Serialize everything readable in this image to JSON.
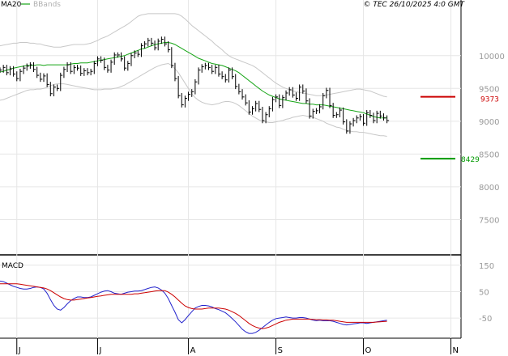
{
  "header": {
    "legend_ma": "MA20",
    "legend_bb": "BBands",
    "copyright": "© TEC 26/10/2025 4:0 GMT"
  },
  "colors": {
    "ma": "#16a516",
    "bands": "#c8c8c8",
    "price": "#000000",
    "resistance": "#cc0000",
    "support": "#009900",
    "macd_line": "#2222cc",
    "signal_line": "#cc0000",
    "grid": "#e6e6e6"
  },
  "markers": {
    "resistance": {
      "value": 9373,
      "label": "9373"
    },
    "support": {
      "value": 8429,
      "label": "8429"
    }
  },
  "macd_panel": {
    "title": "MACD"
  },
  "chart_data": [
    {
      "type": "line",
      "title": "",
      "ylim": [
        7000,
        10700
      ],
      "y_ticks": [
        7500,
        8000,
        8500,
        9000,
        9500,
        10000
      ],
      "grid": true,
      "x_tick_labels": [
        "J",
        "J",
        "A",
        "S",
        "O",
        "N"
      ],
      "x_tick_positions": [
        5,
        29,
        56,
        82,
        108,
        134
      ],
      "x_range": [
        0,
        137
      ],
      "series": [
        {
          "name": "MA20",
          "values": [
            9750,
            9760,
            9780,
            9790,
            9810,
            9820,
            9830,
            9840,
            9850,
            9850,
            9850,
            9860,
            9860,
            9850,
            9860,
            9860,
            9860,
            9860,
            9860,
            9860,
            9860,
            9870,
            9880,
            9880,
            9890,
            9890,
            9890,
            9900,
            9910,
            9920,
            9930,
            9940,
            9950,
            9960,
            9970,
            9980,
            9990,
            10000,
            10020,
            10040,
            10060,
            10080,
            10100,
            10110,
            10130,
            10150,
            10170,
            10180,
            10190,
            10200,
            10200,
            10190,
            10170,
            10140,
            10110,
            10080,
            10050,
            10020,
            9990,
            9960,
            9940,
            9920,
            9900,
            9880,
            9870,
            9860,
            9850,
            9830,
            9810,
            9790,
            9770,
            9740,
            9700,
            9660,
            9620,
            9580,
            9540,
            9500,
            9460,
            9430,
            9400,
            9380,
            9360,
            9340,
            9330,
            9320,
            9310,
            9300,
            9290,
            9280,
            9270,
            9270,
            9260,
            9260,
            9250,
            9250,
            9250,
            9240,
            9230,
            9220,
            9210,
            9200,
            9190,
            9180,
            9170,
            9160,
            9150,
            9140,
            9130,
            9110,
            9090,
            9070,
            9060,
            9050,
            9050,
            9050
          ]
        },
        {
          "name": "BBands upper",
          "values": [
            10150,
            10160,
            10170,
            10180,
            10190,
            10190,
            10200,
            10200,
            10200,
            10190,
            10190,
            10180,
            10180,
            10160,
            10150,
            10140,
            10130,
            10130,
            10130,
            10140,
            10150,
            10160,
            10170,
            10170,
            10170,
            10170,
            10180,
            10190,
            10210,
            10230,
            10260,
            10280,
            10300,
            10330,
            10360,
            10390,
            10420,
            10450,
            10480,
            10520,
            10560,
            10600,
            10620,
            10630,
            10640,
            10640,
            10640,
            10640,
            10640,
            10640,
            10640,
            10640,
            10640,
            10630,
            10600,
            10560,
            10510,
            10460,
            10420,
            10380,
            10340,
            10300,
            10260,
            10220,
            10170,
            10130,
            10090,
            10040,
            10000,
            9970,
            9950,
            9930,
            9910,
            9890,
            9870,
            9850,
            9820,
            9780,
            9740,
            9700,
            9660,
            9620,
            9580,
            9550,
            9520,
            9500,
            9480,
            9460,
            9450,
            9440,
            9430,
            9420,
            9410,
            9400,
            9390,
            9390,
            9390,
            9400,
            9410,
            9420,
            9430,
            9440,
            9450,
            9460,
            9470,
            9480,
            9490,
            9490,
            9480,
            9470,
            9460,
            9440,
            9420,
            9400,
            9380,
            9370
          ]
        },
        {
          "name": "BBands lower",
          "values": [
            9320,
            9330,
            9350,
            9370,
            9390,
            9410,
            9430,
            9450,
            9470,
            9480,
            9480,
            9490,
            9490,
            9500,
            9520,
            9540,
            9560,
            9570,
            9570,
            9570,
            9560,
            9550,
            9540,
            9530,
            9520,
            9510,
            9500,
            9490,
            9480,
            9480,
            9480,
            9490,
            9490,
            9490,
            9500,
            9510,
            9530,
            9550,
            9580,
            9610,
            9640,
            9670,
            9700,
            9730,
            9760,
            9790,
            9820,
            9840,
            9860,
            9870,
            9880,
            9850,
            9800,
            9740,
            9660,
            9580,
            9500,
            9420,
            9360,
            9320,
            9290,
            9270,
            9260,
            9250,
            9260,
            9270,
            9290,
            9300,
            9300,
            9290,
            9270,
            9240,
            9200,
            9160,
            9120,
            9080,
            9050,
            9020,
            9000,
            8990,
            8980,
            8980,
            8990,
            9000,
            9010,
            9030,
            9040,
            9060,
            9070,
            9080,
            9090,
            9080,
            9070,
            9060,
            9040,
            9020,
            9000,
            8970,
            8950,
            8930,
            8910,
            8900,
            8880,
            8860,
            8850,
            8840,
            8840,
            8830,
            8830,
            8820,
            8810,
            8800,
            8790,
            8780,
            8780,
            8770
          ]
        },
        {
          "name": "Price",
          "values": [
            9780,
            9820,
            9740,
            9800,
            9720,
            9650,
            9760,
            9810,
            9840,
            9860,
            9790,
            9700,
            9640,
            9690,
            9560,
            9420,
            9520,
            9500,
            9700,
            9790,
            9860,
            9760,
            9820,
            9810,
            9730,
            9770,
            9740,
            9760,
            9880,
            9950,
            9930,
            9820,
            9780,
            9900,
            10010,
            10010,
            9950,
            9810,
            9880,
            10000,
            10040,
            10020,
            10150,
            10180,
            10230,
            10190,
            10120,
            10220,
            10250,
            10180,
            10090,
            9850,
            9650,
            9390,
            9250,
            9350,
            9410,
            9450,
            9600,
            9780,
            9830,
            9850,
            9820,
            9760,
            9820,
            9720,
            9680,
            9630,
            9780,
            9680,
            9530,
            9450,
            9370,
            9280,
            9140,
            9190,
            9270,
            9180,
            9010,
            9100,
            9190,
            9330,
            9370,
            9240,
            9360,
            9430,
            9480,
            9400,
            9350,
            9520,
            9460,
            9310,
            9080,
            9150,
            9160,
            9220,
            9390,
            9470,
            9240,
            9090,
            9100,
            9170,
            8990,
            8850,
            8960,
            9010,
            9050,
            9070,
            8970,
            9130,
            9090,
            9010,
            9120,
            9080,
            9050,
            9010
          ]
        }
      ]
    },
    {
      "type": "line",
      "title": "MACD",
      "ylim": [
        -120,
        180
      ],
      "y_ticks": [
        -50,
        50,
        150
      ],
      "y_tick_labels": [
        "-50",
        "50",
        "150"
      ],
      "grid": true,
      "series": [
        {
          "name": "MACD",
          "values": [
            90,
            88,
            82,
            76,
            70,
            66,
            62,
            60,
            60,
            62,
            66,
            68,
            66,
            60,
            44,
            20,
            -2,
            -16,
            -20,
            -10,
            4,
            16,
            24,
            30,
            30,
            28,
            28,
            30,
            36,
            42,
            48,
            52,
            54,
            50,
            44,
            42,
            40,
            44,
            48,
            50,
            52,
            52,
            54,
            58,
            62,
            66,
            68,
            64,
            56,
            44,
            24,
            -2,
            -28,
            -56,
            -68,
            -56,
            -40,
            -26,
            -12,
            -6,
            -2,
            -2,
            -4,
            -8,
            -14,
            -18,
            -24,
            -30,
            -40,
            -52,
            -64,
            -78,
            -92,
            -102,
            -108,
            -108,
            -104,
            -96,
            -86,
            -76,
            -66,
            -58,
            -52,
            -50,
            -48,
            -46,
            -48,
            -50,
            -50,
            -48,
            -48,
            -50,
            -54,
            -58,
            -60,
            -58,
            -60,
            -60,
            -60,
            -62,
            -66,
            -70,
            -74,
            -76,
            -74,
            -72,
            -70,
            -68,
            -68,
            -70,
            -68,
            -66,
            -64,
            -62,
            -60,
            -58
          ]
        },
        {
          "name": "Signal",
          "values": [
            80,
            80,
            80,
            80,
            80,
            80,
            78,
            76,
            74,
            72,
            70,
            68,
            66,
            64,
            60,
            54,
            46,
            38,
            30,
            24,
            20,
            18,
            18,
            20,
            22,
            24,
            26,
            28,
            30,
            32,
            34,
            36,
            38,
            40,
            40,
            40,
            40,
            40,
            40,
            40,
            42,
            42,
            44,
            46,
            48,
            50,
            52,
            54,
            54,
            54,
            48,
            40,
            30,
            18,
            6,
            -4,
            -10,
            -14,
            -16,
            -16,
            -16,
            -14,
            -12,
            -12,
            -12,
            -12,
            -14,
            -16,
            -20,
            -26,
            -32,
            -40,
            -50,
            -60,
            -70,
            -78,
            -84,
            -88,
            -90,
            -88,
            -84,
            -78,
            -72,
            -66,
            -62,
            -58,
            -56,
            -54,
            -54,
            -54,
            -54,
            -54,
            -54,
            -55,
            -56,
            -56,
            -57,
            -57,
            -58,
            -58,
            -60,
            -62,
            -64,
            -66,
            -66,
            -66,
            -66,
            -66,
            -66,
            -66,
            -66,
            -66,
            -65,
            -64,
            -63,
            -62
          ]
        }
      ]
    }
  ]
}
